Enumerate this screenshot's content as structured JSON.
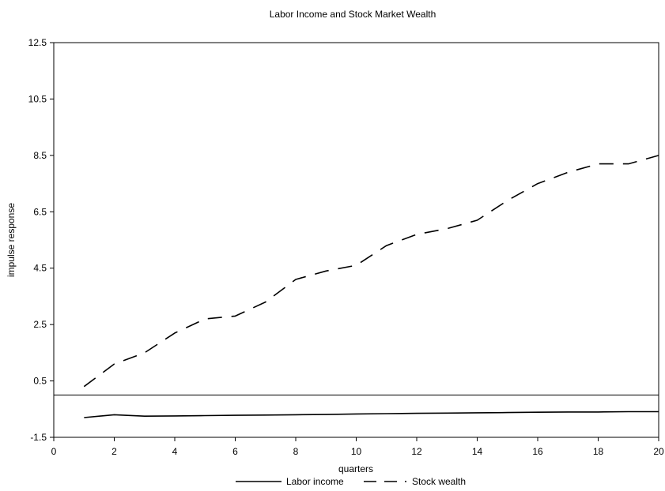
{
  "chart_data": {
    "type": "line",
    "title": "Labor Income and Stock Market Wealth",
    "xlabel": "quarters",
    "ylabel": "impulse response",
    "xlim": [
      0,
      20
    ],
    "ylim": [
      -1.5,
      12.5
    ],
    "xticks": [
      "0",
      "2",
      "4",
      "6",
      "8",
      "10",
      "12",
      "14",
      "16",
      "18",
      "20"
    ],
    "yticks": [
      "-1.5",
      "0.5",
      "2.5",
      "4.5",
      "6.5",
      "8.5",
      "10.5",
      "12.5"
    ],
    "reference_line_y": 0,
    "grid": false,
    "legend_position": "bottom",
    "x": [
      1,
      2,
      3,
      4,
      5,
      6,
      7,
      8,
      9,
      10,
      11,
      12,
      13,
      14,
      15,
      16,
      17,
      18,
      19,
      20
    ],
    "series": [
      {
        "name": "Labor income",
        "style": "solid",
        "values": [
          -0.8,
          -0.7,
          -0.75,
          -0.74,
          -0.73,
          -0.72,
          -0.71,
          -0.7,
          -0.69,
          -0.67,
          -0.66,
          -0.65,
          -0.64,
          -0.63,
          -0.62,
          -0.61,
          -0.6,
          -0.6,
          -0.59,
          -0.59
        ]
      },
      {
        "name": "Stock wealth",
        "style": "dashed",
        "values": [
          0.3,
          1.1,
          1.5,
          2.2,
          2.7,
          2.8,
          3.3,
          4.1,
          4.4,
          4.6,
          5.3,
          5.7,
          5.9,
          6.2,
          6.9,
          7.5,
          7.9,
          8.2,
          8.2,
          8.5
        ]
      }
    ]
  }
}
